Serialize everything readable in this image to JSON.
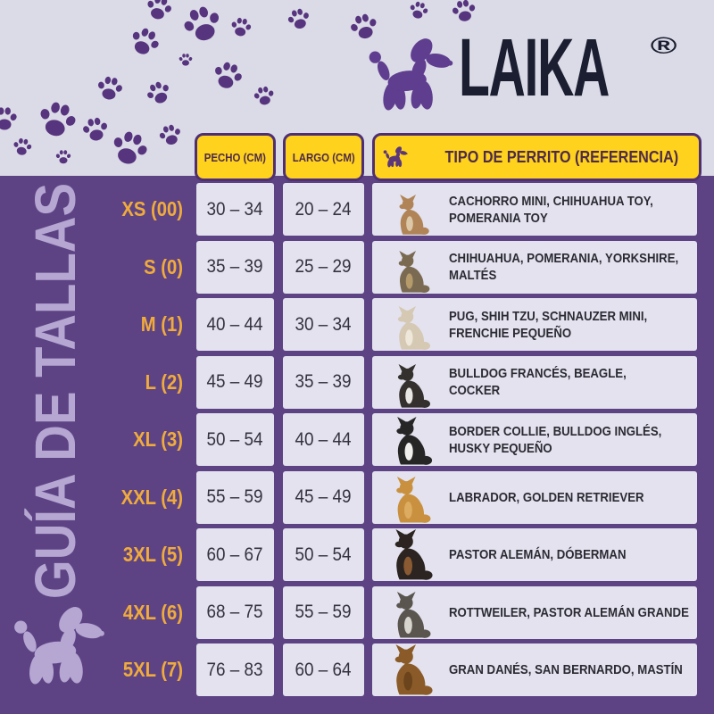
{
  "brand": {
    "name": "LAIKA",
    "registered": "®"
  },
  "sidebar": {
    "title": "GUÍA DE TALLAS"
  },
  "table": {
    "headers": {
      "chest": "PECHO (CM)",
      "length": "LARGO (CM)",
      "type": "TIPO DE PERRITO (REFERENCIA)"
    },
    "rows": [
      {
        "size": "XS (00)",
        "chest": "30 – 34",
        "length": "20 – 24",
        "breeds": [
          "CACHORRO MINI, CHIHUAHUA TOY,",
          "POMERANIA TOY"
        ],
        "dog": "chihuahua",
        "dog_color": "#B08457",
        "chest_color": "#DCC8A8",
        "dog_h": 46
      },
      {
        "size": "S (0)",
        "chest": "35 – 39",
        "length": "25 – 29",
        "breeds": [
          "CHIHUAHUA, POMERANIA, YORKSHIRE,",
          "MALTÉS"
        ],
        "dog": "yorkshire",
        "dog_color": "#7A6A52",
        "chest_color": "#B59A6B",
        "dog_h": 48
      },
      {
        "size": "M (1)",
        "chest": "40 – 44",
        "length": "30 – 34",
        "breeds": [
          "PUG, SHIH TZU, SCHNAUZER MINI,",
          "FRENCHIE PEQUEÑO"
        ],
        "dog": "shih-tzu",
        "dog_color": "#D5C9B3",
        "chest_color": "#EFE8DA",
        "dog_h": 50
      },
      {
        "size": "L (2)",
        "chest": "45 – 49",
        "length": "35 – 39",
        "breeds": [
          "BULLDOG FRANCÉS, BEAGLE,",
          "COCKER"
        ],
        "dog": "french-bulldog",
        "dog_color": "#33302D",
        "chest_color": "#E8E6E2",
        "dog_h": 50
      },
      {
        "size": "XL (3)",
        "chest": "50 – 54",
        "length": "40 – 44",
        "breeds": [
          "BORDER COLLIE, BULLDOG INGLÉS,",
          "HUSKY PEQUEÑO"
        ],
        "dog": "border-collie",
        "dog_color": "#262626",
        "chest_color": "#F0EFED",
        "dog_h": 55
      },
      {
        "size": "XXL (4)",
        "chest": "55 – 59",
        "length": "45 – 49",
        "breeds": [
          "LABRADOR, GOLDEN RETRIEVER"
        ],
        "dog": "golden-retriever",
        "dog_color": "#C9913F",
        "chest_color": "#DCAC60",
        "dog_h": 53
      },
      {
        "size": "3XL (5)",
        "chest": "60 – 67",
        "length": "50 – 54",
        "breeds": [
          "PASTOR ALEMÁN, DÓBERMAN"
        ],
        "dog": "doberman",
        "dog_color": "#2B2420",
        "chest_color": "#8A5A33",
        "dog_h": 58
      },
      {
        "size": "4XL (6)",
        "chest": "68 – 75",
        "length": "55 – 59",
        "breeds": [
          "ROTTWEILER, PASTOR ALEMÁN GRANDE"
        ],
        "dog": "rottweiler",
        "dog_color": "#5A554E",
        "chest_color": "#D8D4CE",
        "dog_h": 53
      },
      {
        "size": "5XL (7)",
        "chest": "76 – 83",
        "length": "60 – 64",
        "breeds": [
          "GRAN DANÉS, SAN BERNARDO, MASTÍN"
        ],
        "dog": "mastiff",
        "dog_color": "#8A5B28",
        "chest_color": "#6B431C",
        "dog_h": 58
      }
    ]
  },
  "colors": {
    "top_background": "#DBDAE7",
    "main_background": "#5D4384",
    "paw_print": "#56347E",
    "tab_yellow": "#FFD21E",
    "tab_text": "#4E2B49",
    "cell_background": "#E3E2EE",
    "size_label_yellow": "#F0AB3D",
    "sidebar_text": "#B5A6D2",
    "logo_dog_purple": "#5F3D8F",
    "logo_text_navy": "#1A1E30"
  }
}
